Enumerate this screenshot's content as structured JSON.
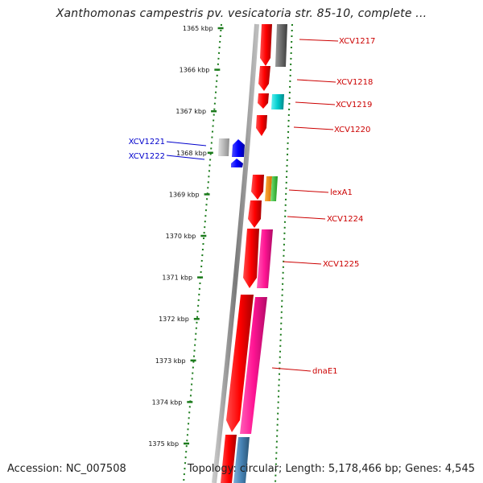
{
  "title": "Xanthomonas campestris pv. vesicatoria str. 85-10, complete ...",
  "footer": {
    "accession": "Accession: NC_007508",
    "summary": "Topology: circular; Length: 5,178,466 bp; Genes: 4,545"
  },
  "colors": {
    "forward_label": "#cc0000",
    "reverse_label": "#0000cc",
    "tick": "#1a7a1a",
    "backbone": "#888888"
  },
  "scale": {
    "ticks": [
      "1365 kbp",
      "1366 kbp",
      "1367 kbp",
      "1368 kbp",
      "1369 kbp",
      "1370 kbp",
      "1371 kbp",
      "1372 kbp",
      "1373 kbp",
      "1374 kbp",
      "1375 kbp"
    ]
  },
  "gene_labels": [
    {
      "text": "XCV1217",
      "strand": "forward"
    },
    {
      "text": "XCV1218",
      "strand": "forward"
    },
    {
      "text": "XCV1219",
      "strand": "forward"
    },
    {
      "text": "XCV1220",
      "strand": "forward"
    },
    {
      "text": "XCV1221",
      "strand": "reverse"
    },
    {
      "text": "XCV1222",
      "strand": "reverse"
    },
    {
      "text": "lexA1",
      "strand": "forward"
    },
    {
      "text": "XCV1224",
      "strand": "forward"
    },
    {
      "text": "XCV1225",
      "strand": "forward"
    },
    {
      "text": "dnaE1",
      "strand": "forward"
    }
  ]
}
